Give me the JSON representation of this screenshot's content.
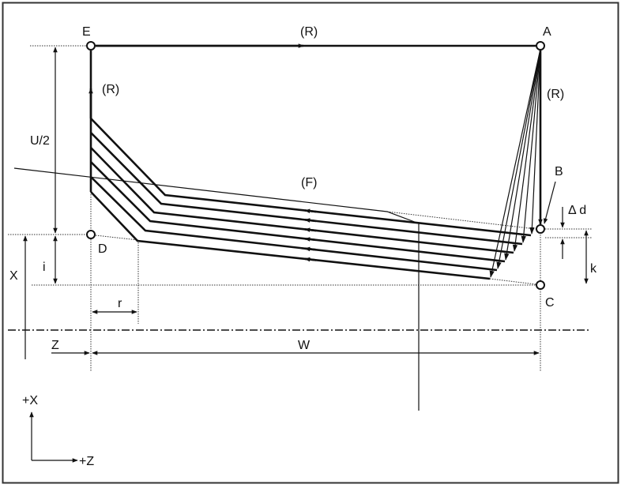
{
  "labels": {
    "E": "E",
    "A": "A",
    "B": "B",
    "C": "C",
    "D": "D",
    "rapid_top": "(R)",
    "rapid_left": "(R)",
    "rapid_right": "(R)",
    "feed": "(F)",
    "delta_d": "Δ d",
    "k": "k",
    "X": "X",
    "i": "i",
    "U2": "U/2",
    "r": "r",
    "Z": "Z",
    "W": "W",
    "axis_x": "+X",
    "axis_z": "+Z"
  }
}
